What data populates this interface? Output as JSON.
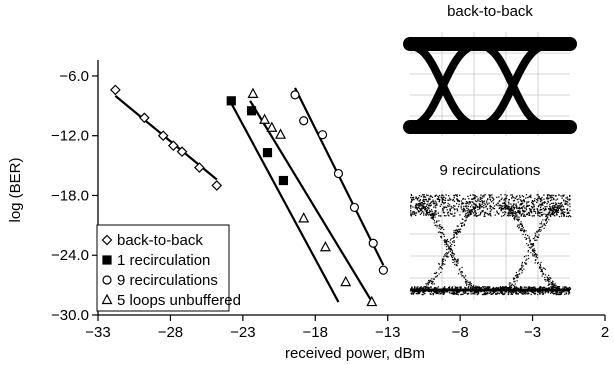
{
  "chart_data": {
    "type": "scatter",
    "xlabel": "received power, dBm",
    "ylabel": "log (BER)",
    "xlim": [
      -33,
      2
    ],
    "ylim": [
      -30,
      -4.4
    ],
    "x_ticks": [
      -33,
      -28,
      -23,
      -18,
      -13,
      -8,
      -3,
      2
    ],
    "x_tick_labels": [
      "−33",
      "−28",
      "−23",
      "−18",
      "−13",
      "−8",
      "−3",
      "2"
    ],
    "y_ticks": [
      -30,
      -24,
      -18,
      -12,
      -6
    ],
    "y_tick_labels": [
      "−30.0",
      "−24.0",
      "−18.0",
      "−12.0",
      "−6.0"
    ],
    "legend_position": "bottom-left",
    "series": [
      {
        "name": "back-to-back",
        "marker": "diamond-open",
        "x": [
          -31.8,
          -29.8,
          -28.5,
          -27.8,
          -27.2,
          -26.0,
          -24.8
        ],
        "y": [
          -7.4,
          -10.2,
          -12.0,
          -13.0,
          -13.6,
          -15.2,
          -17.0
        ],
        "fit": {
          "x": [
            -31.8,
            -24.8
          ],
          "y": [
            -8.0,
            -16.4
          ]
        }
      },
      {
        "name": "1 recirculation",
        "marker": "square-filled",
        "x": [
          -23.8,
          -22.4,
          -21.3,
          -20.2
        ],
        "y": [
          -8.5,
          -9.5,
          -13.7,
          -16.5
        ],
        "fit": {
          "x": [
            -24.0,
            -16.4
          ],
          "y": [
            -8.2,
            -28.7
          ]
        }
      },
      {
        "name": "9 recirculations",
        "marker": "circle-open",
        "x": [
          -19.4,
          -18.8,
          -17.5,
          -16.4,
          -15.3,
          -14.0,
          -13.3
        ],
        "y": [
          -7.9,
          -10.5,
          -11.9,
          -15.8,
          -19.2,
          -22.8,
          -25.5
        ],
        "fit": {
          "x": [
            -19.4,
            -13.3
          ],
          "y": [
            -7.2,
            -25.0
          ]
        }
      },
      {
        "name": "5 loops unbuffered",
        "marker": "triangle-open",
        "x": [
          -22.3,
          -21.5,
          -21.0,
          -20.4,
          -18.8,
          -17.3,
          -15.9,
          -14.1
        ],
        "y": [
          -7.8,
          -10.4,
          -11.2,
          -11.9,
          -20.3,
          -23.2,
          -26.7,
          -28.7
        ],
        "fit": {
          "x": [
            -22.5,
            -14.2
          ],
          "y": [
            -8.5,
            -28.4
          ]
        }
      }
    ]
  },
  "eye_diagrams": [
    {
      "title": "back-to-back"
    },
    {
      "title": "9 recirculations"
    }
  ]
}
